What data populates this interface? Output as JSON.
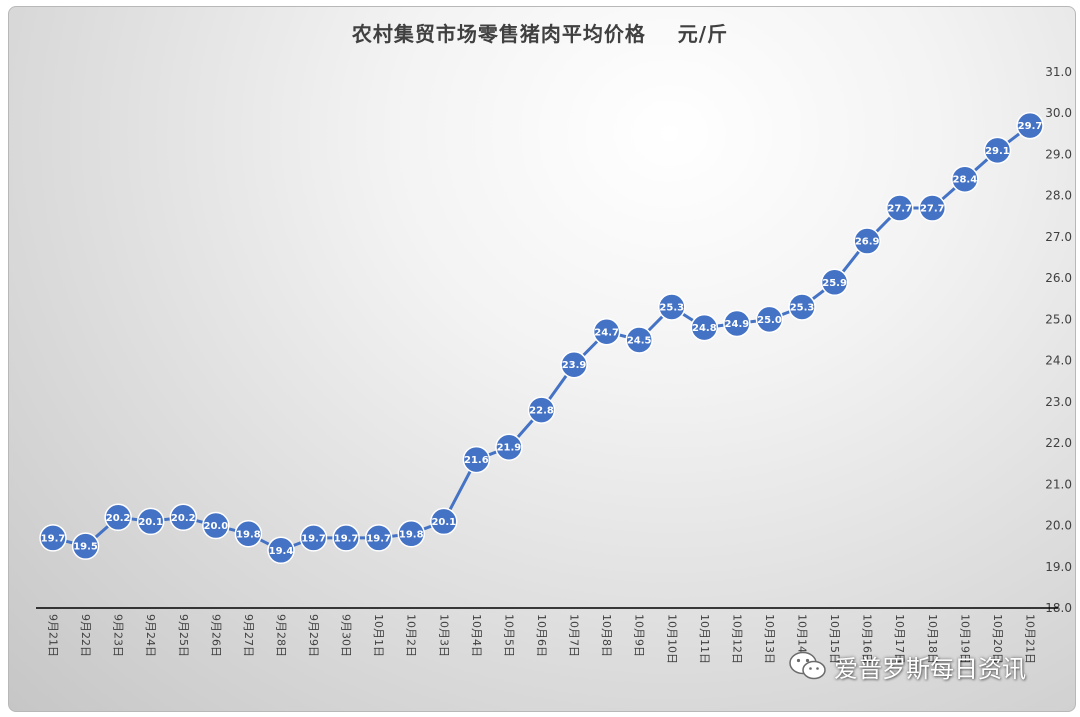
{
  "title": "农村集贸市场零售猪肉平均价格    元/斤",
  "watermark": "爱普罗斯每日资讯",
  "colors": {
    "line": "#4472C4",
    "marker": "#4472C4",
    "label": "#ffffff",
    "axis": "#000000"
  },
  "chart_data": {
    "type": "line",
    "title": "农村集贸市场零售猪肉平均价格    元/斤",
    "xlabel": "",
    "ylabel": "",
    "ylim": [
      18.0,
      31.0
    ],
    "y_ticks": [
      "18.0",
      "19.0",
      "20.0",
      "21.0",
      "22.0",
      "23.0",
      "24.0",
      "25.0",
      "26.0",
      "27.0",
      "28.0",
      "29.0",
      "30.0",
      "31.0"
    ],
    "y_axis_position": "right",
    "grid": false,
    "legend": "none",
    "categories": [
      "9月21日",
      "9月22日",
      "9月23日",
      "9月24日",
      "9月25日",
      "9月26日",
      "9月27日",
      "9月28日",
      "9月29日",
      "9月30日",
      "10月1日",
      "10月2日",
      "10月3日",
      "10月4日",
      "10月5日",
      "10月6日",
      "10月7日",
      "10月8日",
      "10月9日",
      "10月10日",
      "10月11日",
      "10月12日",
      "10月13日",
      "10月14日",
      "10月15日",
      "10月16日",
      "10月17日",
      "10月18日",
      "10月19日",
      "10月20日",
      "10月21日"
    ],
    "values": [
      19.7,
      19.5,
      20.2,
      20.1,
      20.2,
      20.0,
      19.8,
      19.4,
      19.7,
      19.7,
      19.7,
      19.8,
      20.1,
      21.6,
      21.9,
      22.8,
      23.9,
      24.7,
      24.5,
      25.3,
      24.8,
      24.9,
      25.0,
      25.3,
      25.9,
      26.9,
      27.7,
      27.7,
      28.4,
      29.1,
      29.7
    ],
    "data_labels": [
      "19.7",
      "19.5",
      "20.2",
      "20.1",
      "20.2",
      "20.0",
      "19.8",
      "19.4",
      "19.7",
      "19.7",
      "19.7",
      "19.8",
      "20.1",
      "21.6",
      "21.9",
      "22.8",
      "23.9",
      "24.7",
      "24.5",
      "25.3",
      "24.8",
      "24.9",
      "25.0",
      "25.3",
      "25.9",
      "26.9",
      "27.7",
      "27.7",
      "28.4",
      "29.1",
      "29.7"
    ]
  }
}
